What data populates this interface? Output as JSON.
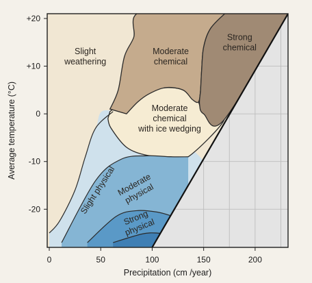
{
  "chart_data": {
    "type": "area",
    "title": "",
    "xlabel": "Precipitation (cm /year)",
    "ylabel": "Average temperature (°C)",
    "xlim": [
      -2,
      232
    ],
    "ylim": [
      -28,
      21
    ],
    "x_ticks": [
      {
        "value": 0,
        "label": "0"
      },
      {
        "value": 50,
        "label": "50"
      },
      {
        "value": 100,
        "label": "100"
      },
      {
        "value": 150,
        "label": "150"
      },
      {
        "value": 200,
        "label": "200"
      }
    ],
    "y_ticks": [
      {
        "value": 20,
        "label": "+20"
      },
      {
        "value": 10,
        "label": "+10"
      },
      {
        "value": 0,
        "label": "0"
      },
      {
        "value": -10,
        "label": "-10"
      },
      {
        "value": -20,
        "label": "-20"
      }
    ],
    "grid": true,
    "colors": {
      "background": "#f4f1ea",
      "frame": "#1f1f1f",
      "slight_weathering": "#f1e7d3",
      "moderate_chemical": "#c5ab8d",
      "strong_chemical": "#a08a74",
      "ice_wedging": "#f6ecd3",
      "slight_physical": "#cfe1ec",
      "moderate_physical": "#85b5d4",
      "strong_physical_outer": "#5a99c7",
      "strong_physical_inner": "#3f7fb4",
      "unattainable": "#e4e4e4",
      "grid": "#bdbdbd"
    },
    "regions": [
      {
        "id": "slight-weathering",
        "label": [
          "Slight",
          "weathering"
        ],
        "center": [
          35,
          12
        ]
      },
      {
        "id": "moderate-chemical",
        "label": [
          "Moderate",
          "chemical"
        ],
        "center": [
          118,
          12
        ]
      },
      {
        "id": "strong-chemical",
        "label": [
          "Strong",
          "chemical"
        ],
        "center": [
          185,
          15
        ]
      },
      {
        "id": "ice-wedging",
        "label": [
          "Moderate",
          "chemical",
          "with ice wedging"
        ],
        "center": [
          117,
          -1
        ]
      },
      {
        "id": "slight-physical",
        "label": [
          "Slight physical"
        ],
        "center": [
          47,
          -16
        ],
        "rotation": -57
      },
      {
        "id": "moderate-physical",
        "label": [
          "Moderate",
          "physical"
        ],
        "center": [
          85,
          -15.8
        ],
        "rotation": -29
      },
      {
        "id": "strong-physical",
        "label": [
          "Strong",
          "physical"
        ],
        "center": [
          86,
          -22.8
        ],
        "rotation": -22
      }
    ],
    "boundaries": {
      "slight_physical_top": [
        [
          0,
          -25
        ],
        [
          10,
          -22.5
        ],
        [
          25,
          -16
        ],
        [
          35,
          -9
        ],
        [
          45,
          -3
        ],
        [
          62,
          0.5
        ]
      ],
      "moderate_physical_top": [
        [
          12,
          -27
        ],
        [
          45,
          -14
        ],
        [
          70,
          -9.5
        ],
        [
          95,
          -8.8
        ],
        [
          118,
          -9
        ],
        [
          135,
          -9
        ]
      ],
      "strong_physical_top": [
        [
          37,
          -27
        ],
        [
          65,
          -21.5
        ],
        [
          85,
          -20.3
        ],
        [
          105,
          -20.6
        ],
        [
          120,
          -21.5
        ]
      ],
      "strong_physical_core_top": [
        [
          62,
          -27
        ],
        [
          90,
          -25.2
        ],
        [
          105,
          -25
        ],
        [
          117,
          -25.5
        ]
      ],
      "moderate_chemical_outline": [
        [
          59,
          1
        ],
        [
          67,
          5
        ],
        [
          73,
          12
        ],
        [
          82,
          16
        ],
        [
          90,
          21.5
        ],
        [
          173,
          21.5
        ],
        [
          157,
          18
        ],
        [
          150,
          14
        ],
        [
          148,
          9
        ],
        [
          147,
          5
        ],
        [
          145,
          2.5
        ],
        [
          139,
          3
        ],
        [
          130,
          5
        ],
        [
          113,
          5.5
        ],
        [
          97,
          4.2
        ],
        [
          86,
          2.5
        ],
        [
          75,
          0
        ]
      ],
      "strong_chemical_left": [
        [
          173,
          21.5
        ],
        [
          157,
          18
        ],
        [
          150,
          14
        ],
        [
          148,
          9
        ],
        [
          147,
          5
        ],
        [
          146,
          2
        ],
        [
          150,
          0
        ],
        [
          170,
          -1.2
        ]
      ],
      "ice_wedging_outline": [
        [
          59,
          0.5
        ],
        [
          75,
          3
        ],
        [
          95,
          4.8
        ],
        [
          115,
          5.5
        ],
        [
          130,
          5
        ],
        [
          144,
          2.8
        ],
        [
          150,
          0
        ],
        [
          170,
          -1.2
        ],
        [
          135,
          -9
        ],
        [
          118,
          -9
        ],
        [
          95,
          -8.7
        ],
        [
          75,
          -7
        ],
        [
          60,
          -3
        ],
        [
          57,
          -1
        ]
      ],
      "diagonal": [
        [
          100,
          -28
        ],
        [
          232,
          21
        ]
      ]
    }
  }
}
